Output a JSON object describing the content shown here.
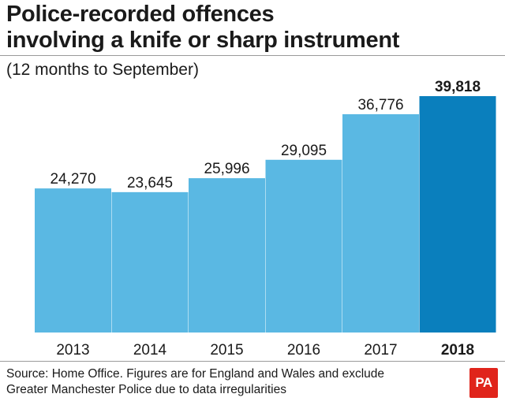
{
  "header": {
    "title_line1": "Police-recorded offences",
    "title_line2": "involving a knife or sharp instrument",
    "subtitle": "(12 months to September)"
  },
  "footer": {
    "source_line1": "Source: Home Office. Figures are for England and Wales and exclude",
    "source_line2": "Greater Manchester Police due to data irregularities",
    "logo_text": "PA"
  },
  "colors": {
    "bar": "#5ab8e3",
    "bar_highlight": "#0a7fbd",
    "logo": "#e0241b"
  },
  "chart_data": {
    "type": "bar",
    "title": "Police-recorded offences involving a knife or sharp instrument",
    "subtitle": "(12 months to September)",
    "categories": [
      "2013",
      "2014",
      "2015",
      "2016",
      "2017",
      "2018"
    ],
    "values": [
      24270,
      23645,
      25996,
      29095,
      36776,
      39818
    ],
    "value_labels": [
      "24,270",
      "23,645",
      "25,996",
      "29,095",
      "36,776",
      "39,818"
    ],
    "highlight_index": 5,
    "xlabel": "",
    "ylabel": "",
    "ylim": [
      0,
      39818
    ],
    "grid": false,
    "legend": "none"
  }
}
